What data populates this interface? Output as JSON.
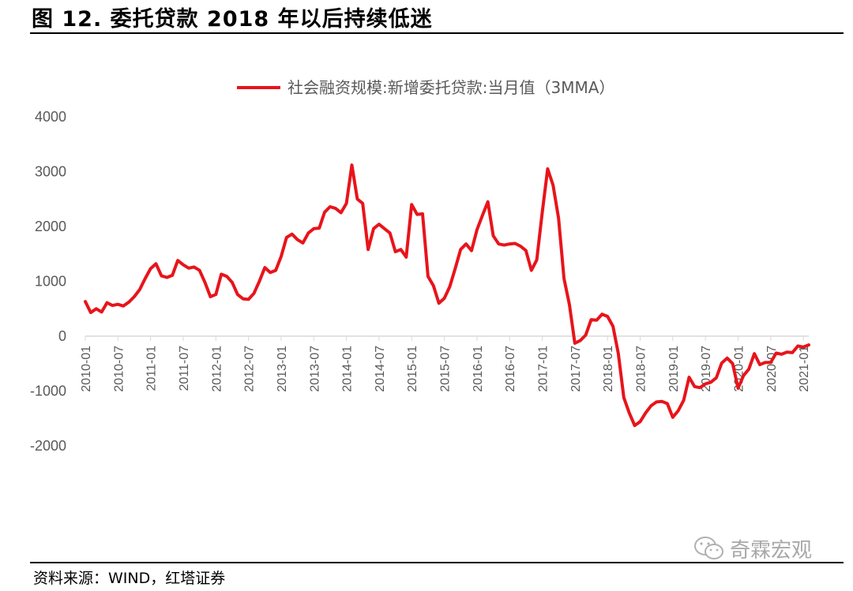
{
  "header": {
    "title": "图 12. 委托贷款 2018 年以后持续低迷"
  },
  "footer": {
    "source": "资料来源：WIND，红塔证券"
  },
  "watermark": {
    "text": "奇霖宏观",
    "icon": "wechat-icon"
  },
  "chart_data": {
    "type": "line",
    "title": "",
    "xlabel": "",
    "ylabel": "",
    "ylim": [
      -2000,
      4000
    ],
    "yticks": [
      4000,
      3000,
      2000,
      1000,
      0,
      -1000,
      -2000
    ],
    "xticks": [
      "2010-01",
      "2010-07",
      "2011-01",
      "2011-07",
      "2012-01",
      "2012-07",
      "2013-01",
      "2013-07",
      "2014-01",
      "2014-07",
      "2015-01",
      "2015-07",
      "2016-01",
      "2016-07",
      "2017-01",
      "2017-07",
      "2018-01",
      "2018-07",
      "2019-01",
      "2019-07",
      "2020-01",
      "2020-07",
      "2021-01"
    ],
    "grid": false,
    "legend_position": "top-center",
    "x_start": "2010-01",
    "x_end": "2021-02",
    "series": [
      {
        "name": "社会融资规模:新增委托贷款:当月值（3MMA）",
        "color": "#e8141b",
        "values": [
          630,
          430,
          500,
          440,
          610,
          560,
          580,
          550,
          620,
          720,
          850,
          1050,
          1230,
          1320,
          1100,
          1070,
          1110,
          1380,
          1300,
          1240,
          1260,
          1200,
          980,
          720,
          760,
          1130,
          1090,
          980,
          760,
          680,
          670,
          780,
          1000,
          1250,
          1160,
          1200,
          1450,
          1800,
          1860,
          1760,
          1700,
          1880,
          1960,
          1970,
          2260,
          2360,
          2330,
          2250,
          2420,
          3120,
          2500,
          2420,
          1580,
          1960,
          2040,
          1960,
          1880,
          1540,
          1580,
          1440,
          2400,
          2220,
          2230,
          1090,
          920,
          600,
          690,
          900,
          1230,
          1580,
          1680,
          1560,
          1940,
          2200,
          2450,
          1830,
          1680,
          1660,
          1680,
          1690,
          1640,
          1560,
          1200,
          1390,
          2250,
          3050,
          2750,
          2150,
          1050,
          570,
          -130,
          -80,
          20,
          300,
          290,
          400,
          360,
          180,
          -320,
          -1120,
          -1400,
          -1630,
          -1560,
          -1400,
          -1270,
          -1200,
          -1190,
          -1230,
          -1480,
          -1360,
          -1170,
          -750,
          -920,
          -940,
          -870,
          -840,
          -760,
          -490,
          -400,
          -500,
          -950,
          -720,
          -600,
          -320,
          -520,
          -480,
          -480,
          -310,
          -330,
          -290,
          -300,
          -180,
          -200,
          -160
        ]
      }
    ]
  }
}
